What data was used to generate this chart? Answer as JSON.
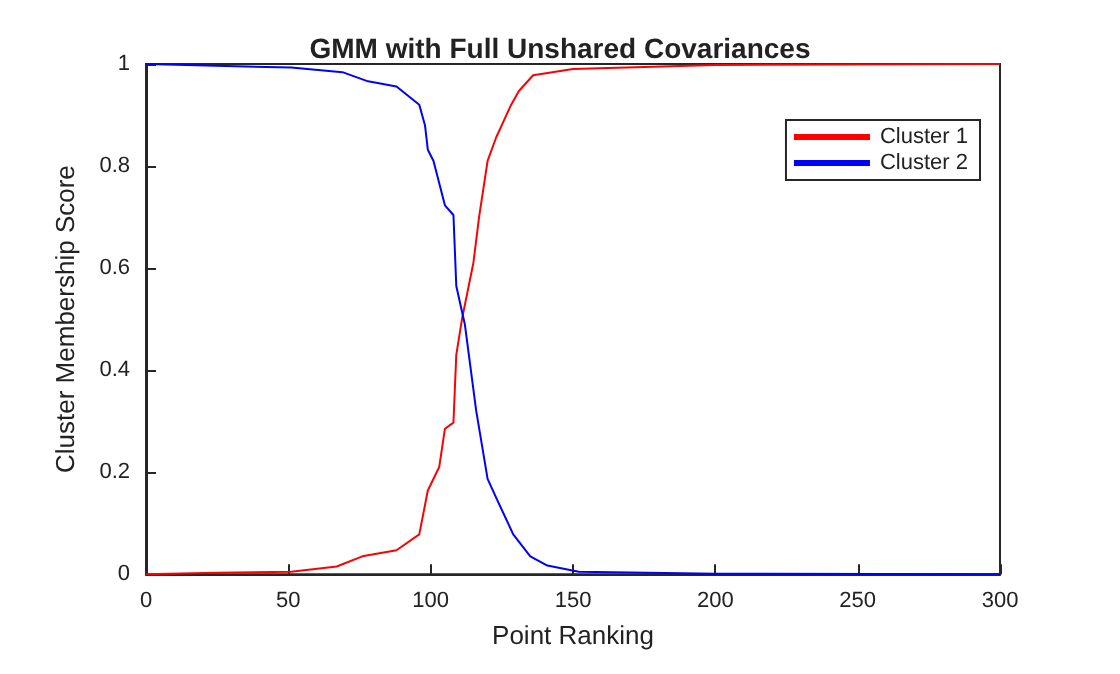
{
  "chart_data": {
    "type": "line",
    "title": "GMM with Full Unshared Covariances",
    "xlabel": "Point Ranking",
    "ylabel": "Cluster Membership Score",
    "xlim": [
      0,
      300
    ],
    "xticks": [
      0,
      50,
      100,
      150,
      200,
      250,
      300
    ],
    "ylim": [
      0,
      1
    ],
    "yticks": [
      0,
      0.2,
      0.4,
      0.6,
      0.8,
      1
    ],
    "grid": false,
    "legend": "top right",
    "marker": "none",
    "line_style": "solid",
    "series": [
      {
        "name": "Cluster 1",
        "color": "#ff0000",
        "x": [
          0,
          25,
          51,
          67,
          76,
          88,
          96,
          99,
          101,
          103,
          105,
          108,
          109,
          111,
          115,
          117,
          120,
          123,
          128,
          131,
          136,
          150,
          200,
          300
        ],
        "values": [
          0,
          0.003,
          0.005,
          0.015,
          0.035,
          0.047,
          0.078,
          0.164,
          0.187,
          0.21,
          0.285,
          0.297,
          0.43,
          0.5,
          0.61,
          0.7,
          0.81,
          0.856,
          0.917,
          0.947,
          0.978,
          0.99,
          0.998,
          1
        ]
      },
      {
        "name": "Cluster 2",
        "color": "#0000ff",
        "x": [
          0,
          51,
          69,
          78,
          88,
          96,
          98,
          99,
          101,
          105,
          108,
          109,
          112,
          116,
          120,
          123,
          129,
          135,
          141,
          152,
          200,
          300
        ],
        "values": [
          1,
          0.993,
          0.984,
          0.966,
          0.956,
          0.92,
          0.88,
          0.832,
          0.81,
          0.723,
          0.704,
          0.565,
          0.49,
          0.32,
          0.187,
          0.15,
          0.078,
          0.035,
          0.017,
          0.005,
          0.001,
          0
        ]
      }
    ]
  }
}
